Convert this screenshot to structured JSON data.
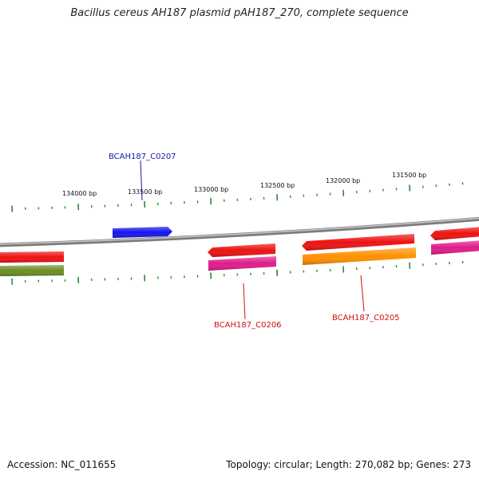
{
  "title": "Bacillus cereus AH187 plasmid pAH187_270, complete sequence",
  "footer": {
    "accession_label": "Accession:",
    "accession": "NC_011655",
    "topology_label": "Topology:",
    "topology": "circular",
    "length_label": "Length:",
    "length": "270,082 bp",
    "genes_label": "Genes:",
    "genes": "273"
  },
  "colors": {
    "backbone": "#8a8a8a",
    "tick": "#2e8b2e",
    "label_forward": "#1a1aaa",
    "label_reverse": "#cc1111",
    "gene_blue": "#1414ee",
    "gene_red": "#ee1111",
    "gene_magenta": "#e01a8c",
    "gene_orange": "#ff9000",
    "gene_olive": "#6b8e23"
  },
  "ticks": [
    {
      "label": "134000 bp"
    },
    {
      "label": "133500 bp"
    },
    {
      "label": "133000 bp"
    },
    {
      "label": "132500 bp"
    },
    {
      "label": "132000 bp"
    },
    {
      "label": "131500 bp"
    }
  ],
  "genes": [
    {
      "name": "BCAH187_C0207",
      "strand": "forward",
      "color": "gene_blue",
      "labeled": true
    },
    {
      "name": "BCAH187_C0206",
      "strand": "reverse",
      "color": "gene_red",
      "labeled": true
    },
    {
      "name": "BCAH187_C0205",
      "strand": "reverse",
      "color": "gene_red",
      "labeled": true
    }
  ]
}
